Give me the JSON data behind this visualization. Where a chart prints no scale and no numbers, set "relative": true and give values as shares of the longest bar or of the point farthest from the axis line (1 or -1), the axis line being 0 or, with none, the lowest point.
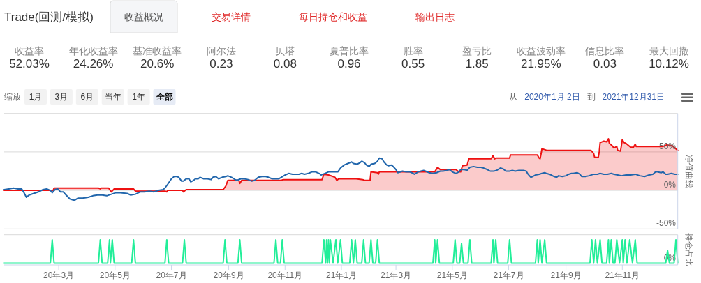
{
  "chart_data": [
    {
      "type": "other",
      "title": "Trade(回测/模拟)",
      "annotations": [
        "收益概况",
        "交易详情",
        "每日持仓和收益",
        "输出日志"
      ],
      "categories": [
        "收益率",
        "年化收益率",
        "基准收益率",
        "阿尔法",
        "贝塔",
        "夏普比率",
        "胜率",
        "盈亏比",
        "收益波动率",
        "信息比率",
        "最大回撤"
      ],
      "value_labels": [
        "52.03%",
        "24.26%",
        "20.6%",
        "0.23",
        "0.08",
        "0.96",
        "0.55",
        "1.85",
        "21.95%",
        "0.03",
        "10.12%"
      ]
    },
    {
      "type": "line",
      "annotations": [
        "缩放",
        "1月",
        "3月",
        "6月",
        "当年",
        "1年",
        "全部",
        "从",
        "2020年1月 2日",
        "到",
        "2021年12月31日"
      ],
      "xlim": [
        "2020-01-02",
        "2021-12-31"
      ],
      "ylim": [
        -50,
        100
      ],
      "yticks": [
        {
          "value": -50,
          "label": "-50%"
        },
        {
          "value": 0,
          "label": "0%"
        },
        {
          "value": 50,
          "label": "50%"
        },
        {
          "value": 100,
          "label": null
        }
      ],
      "ylabel": "净值曲线",
      "grid": "y",
      "tick_labels": "y",
      "series": [
        {
          "type": "area",
          "color": "#ee1111",
          "x": [
            "2020-01-02",
            "2020-02-24",
            "2020-02-25",
            "2020-04-13",
            "2020-04-15",
            "2020-04-16",
            "2020-04-24",
            "2020-04-27",
            "2020-04-30",
            "2020-05-21",
            "2020-05-23",
            "2020-06-24",
            "2020-06-26",
            "2020-06-27",
            "2020-07-13",
            "2020-07-14",
            "2020-07-17",
            "2020-08-26",
            "2020-08-29",
            "2020-08-31",
            "2020-09-12",
            "2020-09-13",
            "2020-09-15",
            "2020-10-28",
            "2020-10-30",
            "2020-12-11",
            "2020-12-13",
            "2020-12-18",
            "2020-12-23",
            "2020-12-25",
            "2020-12-27",
            "2020-12-29",
            "2021-01-17",
            "2021-01-24",
            "2021-01-26",
            "2021-02-01",
            "2021-02-02",
            "2021-02-09",
            "2021-02-10",
            "2021-02-11",
            "2021-04-12",
            "2021-04-15",
            "2021-04-18",
            "2021-05-05",
            "2021-05-08",
            "2021-05-10",
            "2021-05-12",
            "2021-05-17",
            "2021-05-19",
            "2021-06-12",
            "2021-06-14",
            "2021-06-16",
            "2021-06-17",
            "2021-07-02",
            "2021-07-03",
            "2021-08-01",
            "2021-08-03",
            "2021-08-04",
            "2021-08-05",
            "2021-08-06",
            "2021-08-09",
            "2021-08-11",
            "2021-09-28",
            "2021-10-01",
            "2021-10-02",
            "2021-10-06",
            "2021-10-07",
            "2021-10-08",
            "2021-10-12",
            "2021-10-15",
            "2021-10-17",
            "2021-10-18",
            "2021-10-21",
            "2021-10-23",
            "2021-10-26",
            "2021-10-27",
            "2021-10-30",
            "2021-10-31",
            "2021-11-01",
            "2021-11-03",
            "2021-11-05",
            "2021-11-08",
            "2021-11-10",
            "2021-11-13",
            "2021-11-15",
            "2021-11-16",
            "2021-12-15",
            "2021-12-19",
            "2021-12-25",
            "2021-12-28",
            "2021-12-31"
          ],
          "values": [
            0,
            0,
            3,
            3,
            2,
            3,
            3,
            -2,
            2,
            2,
            -1,
            -1,
            -2,
            0,
            0,
            -2,
            1,
            1,
            6,
            13,
            13,
            9,
            13,
            13,
            14,
            14,
            21,
            20,
            18,
            17,
            13,
            15,
            15,
            14,
            13,
            13,
            24,
            23,
            21,
            24,
            24,
            30,
            27,
            27,
            24,
            24,
            32,
            33,
            41,
            41,
            45,
            41,
            42,
            42,
            46,
            46,
            42,
            41,
            47,
            54,
            53,
            52,
            52,
            48,
            43,
            43,
            50,
            62,
            64,
            63,
            67,
            61,
            58,
            55,
            57,
            52,
            51,
            58,
            66,
            62,
            61,
            58,
            56,
            56,
            60,
            57,
            57,
            59,
            58,
            55,
            52
          ]
        },
        {
          "type": "line",
          "color": "#2166ac",
          "x": [
            "2020-01-02",
            "2020-01-07",
            "2020-01-12",
            "2020-01-17",
            "2020-01-21",
            "2020-01-23",
            "2020-01-26",
            "2020-01-29",
            "2020-02-03",
            "2020-02-08",
            "2020-02-13",
            "2020-02-17",
            "2020-02-21",
            "2020-02-23",
            "2020-02-26",
            "2020-02-29",
            "2020-03-03",
            "2020-03-06",
            "2020-03-09",
            "2020-03-13",
            "2020-03-18",
            "2020-03-22",
            "2020-03-27",
            "2020-04-02",
            "2020-04-07",
            "2020-04-12",
            "2020-04-17",
            "2020-04-22",
            "2020-04-27",
            "2020-05-02",
            "2020-05-07",
            "2020-05-14",
            "2020-05-18",
            "2020-05-23",
            "2020-05-28",
            "2020-06-02",
            "2020-06-07",
            "2020-06-12",
            "2020-06-17",
            "2020-06-22",
            "2020-06-24",
            "2020-06-27",
            "2020-07-01",
            "2020-07-04",
            "2020-07-07",
            "2020-07-09",
            "2020-07-12",
            "2020-07-14",
            "2020-07-17",
            "2020-07-20",
            "2020-07-22",
            "2020-07-25",
            "2020-07-27",
            "2020-07-30",
            "2020-08-01",
            "2020-08-05",
            "2020-08-09",
            "2020-08-13",
            "2020-08-15",
            "2020-08-18",
            "2020-08-21",
            "2020-08-25",
            "2020-08-29",
            "2020-08-31",
            "2020-09-04",
            "2020-09-08",
            "2020-09-10",
            "2020-09-14",
            "2020-09-18",
            "2020-09-22",
            "2020-09-26",
            "2020-09-29",
            "2020-10-03",
            "2020-10-07",
            "2020-10-11",
            "2020-10-14",
            "2020-10-18",
            "2020-10-22",
            "2020-10-25",
            "2020-10-28",
            "2020-11-01",
            "2020-11-05",
            "2020-11-09",
            "2020-11-12",
            "2020-11-16",
            "2020-11-19",
            "2020-11-22",
            "2020-11-26",
            "2020-11-30",
            "2020-12-04",
            "2020-12-08",
            "2020-12-10",
            "2020-12-14",
            "2020-12-18",
            "2020-12-23",
            "2020-12-28",
            "2020-12-31",
            "2021-01-04",
            "2021-01-08",
            "2021-01-12",
            "2021-01-14",
            "2021-01-18",
            "2021-01-21",
            "2021-01-23",
            "2021-01-26",
            "2021-01-28",
            "2021-01-31",
            "2021-02-02",
            "2021-02-06",
            "2021-02-09",
            "2021-02-11",
            "2021-02-14",
            "2021-02-16",
            "2021-02-19",
            "2021-02-21",
            "2021-02-24",
            "2021-02-26",
            "2021-03-01",
            "2021-03-03",
            "2021-03-06",
            "2021-03-08",
            "2021-03-12",
            "2021-03-16",
            "2021-03-18",
            "2021-03-21",
            "2021-03-25",
            "2021-03-28",
            "2021-03-31",
            "2021-04-02",
            "2021-04-06",
            "2021-04-10",
            "2021-04-14",
            "2021-04-18",
            "2021-04-21",
            "2021-04-25",
            "2021-04-28",
            "2021-05-01",
            "2021-05-05",
            "2021-05-08",
            "2021-05-10",
            "2021-05-14",
            "2021-05-17",
            "2021-05-20",
            "2021-05-24",
            "2021-05-28",
            "2021-06-01",
            "2021-06-04",
            "2021-06-08",
            "2021-06-11",
            "2021-06-15",
            "2021-06-18",
            "2021-06-22",
            "2021-06-25",
            "2021-06-28",
            "2021-07-02",
            "2021-07-05",
            "2021-07-08",
            "2021-07-12",
            "2021-07-17",
            "2021-07-20",
            "2021-07-22",
            "2021-07-25",
            "2021-07-27",
            "2021-07-30",
            "2021-08-03",
            "2021-08-06",
            "2021-08-09",
            "2021-08-11",
            "2021-08-14",
            "2021-08-16",
            "2021-08-19",
            "2021-08-22",
            "2021-08-24",
            "2021-08-28",
            "2021-09-01",
            "2021-09-04",
            "2021-09-07",
            "2021-09-09",
            "2021-09-13",
            "2021-09-16",
            "2021-09-18",
            "2021-09-22",
            "2021-09-26",
            "2021-10-01",
            "2021-10-05",
            "2021-10-08",
            "2021-10-12",
            "2021-10-16",
            "2021-10-20",
            "2021-10-23",
            "2021-10-27",
            "2021-10-31",
            "2021-11-05",
            "2021-11-10",
            "2021-11-15",
            "2021-11-20",
            "2021-11-25",
            "2021-11-30",
            "2021-12-04",
            "2021-12-07",
            "2021-12-09",
            "2021-12-13",
            "2021-12-15",
            "2021-12-18",
            "2021-12-20",
            "2021-12-24",
            "2021-12-28",
            "2021-12-31"
          ],
          "values": [
            1,
            2,
            3,
            2,
            2,
            -2,
            -9,
            -6,
            -4,
            -2,
            1,
            2,
            0,
            -3,
            1,
            2,
            -2,
            -2,
            -6,
            -11,
            -13,
            -10,
            -10,
            -9,
            -7,
            -6,
            -6,
            -7,
            -5,
            -3,
            -3,
            -4,
            -6,
            -5,
            -2,
            -2,
            -1,
            -2,
            0,
            1,
            3,
            8,
            15,
            18,
            18,
            17,
            12,
            12,
            15,
            15,
            11,
            13,
            15,
            15,
            17,
            15,
            15,
            14,
            17,
            18,
            15,
            17,
            18,
            19,
            17,
            14,
            13,
            15,
            15,
            14,
            12,
            13,
            17,
            18,
            18,
            17,
            15,
            15,
            15,
            17,
            20,
            22,
            21,
            21,
            21,
            22,
            21,
            22,
            24,
            24,
            22,
            20,
            22,
            24,
            24,
            24,
            29,
            33,
            35,
            37,
            35,
            34,
            36,
            38,
            36,
            33,
            31,
            34,
            35,
            38,
            42,
            41,
            37,
            33,
            32,
            33,
            31,
            27,
            23,
            24,
            25,
            24,
            24,
            23,
            21,
            24,
            25,
            26,
            25,
            23,
            22,
            23,
            25,
            25,
            26,
            27,
            24,
            22,
            24,
            27,
            27,
            26,
            30,
            31,
            30,
            30,
            29,
            27,
            25,
            25,
            26,
            29,
            28,
            25,
            25,
            26,
            25,
            26,
            26,
            25,
            21,
            17,
            18,
            20,
            21,
            22,
            23,
            22,
            21,
            20,
            18,
            17,
            19,
            18,
            19,
            21,
            22,
            22,
            23,
            21,
            18,
            18,
            19,
            21,
            21,
            22,
            21,
            21,
            22,
            21,
            20,
            19,
            20,
            20,
            21,
            19,
            18,
            20,
            21,
            24,
            24,
            23,
            24,
            21,
            21,
            22,
            21,
            21
          ]
        }
      ]
    },
    {
      "type": "line",
      "relative": true,
      "xlim": [
        "2020-01-02",
        "2021-12-31"
      ],
      "xticks": [
        {
          "value": "2020-03",
          "label": "20年3月"
        },
        {
          "value": "2020-05",
          "label": "20年5月"
        },
        {
          "value": "2020-07",
          "label": "20年7月"
        },
        {
          "value": "2020-09",
          "label": "20年9月"
        },
        {
          "value": "2020-11",
          "label": "20年11月"
        },
        {
          "value": "2021-01",
          "label": "21年1月"
        },
        {
          "value": "2021-03",
          "label": "21年3月"
        },
        {
          "value": "2021-05",
          "label": "21年5月"
        },
        {
          "value": "2021-07",
          "label": "21年7月"
        },
        {
          "value": "2021-09",
          "label": "21年9月"
        },
        {
          "value": "2021-11",
          "label": "21年11月"
        }
      ],
      "ylabel": "持仓占比",
      "tick_labels": "x",
      "ref_lines": [
        {
          "axis": "y",
          "value": 0,
          "label": "0%"
        }
      ],
      "series": [
        {
          "color": "#22ee99",
          "x": [
            "2020-01-02",
            "2020-02-21",
            "2020-02-23",
            "2020-02-25",
            "2020-04-13",
            "2020-04-15",
            "2020-04-17",
            "2020-04-23",
            "2020-04-25",
            "2020-04-26",
            "2020-04-28",
            "2020-04-30",
            "2020-05-19",
            "2020-05-21",
            "2020-05-23",
            "2020-06-24",
            "2020-06-26",
            "2020-06-28",
            "2020-07-13",
            "2020-07-15",
            "2020-07-17",
            "2020-08-26",
            "2020-08-28",
            "2020-08-30",
            "2020-09-11",
            "2020-09-13",
            "2020-09-15",
            "2020-10-20",
            "2020-10-22",
            "2020-10-24",
            "2020-10-27",
            "2020-10-29",
            "2020-10-31",
            "2020-12-11",
            "2020-12-13",
            "2020-12-15",
            "2020-12-16",
            "2020-12-17",
            "2020-12-18",
            "2020-12-19",
            "2020-12-20",
            "2020-12-23",
            "2020-12-26",
            "2020-12-28",
            "2020-12-31",
            "2021-01-02",
            "2021-01-10",
            "2021-01-12",
            "2021-01-14",
            "2021-01-16",
            "2021-01-18",
            "2021-01-23",
            "2021-01-25",
            "2021-01-27",
            "2021-01-31",
            "2021-02-02",
            "2021-02-04",
            "2021-02-07",
            "2021-02-09",
            "2021-02-11",
            "2021-04-10",
            "2021-04-12",
            "2021-04-13",
            "2021-04-15",
            "2021-04-17",
            "2021-05-02",
            "2021-05-04",
            "2021-05-06",
            "2021-05-09",
            "2021-05-11",
            "2021-05-13",
            "2021-05-18",
            "2021-05-20",
            "2021-05-22",
            "2021-06-12",
            "2021-06-14",
            "2021-06-15",
            "2021-06-17",
            "2021-06-19",
            "2021-06-30",
            "2021-07-02",
            "2021-07-04",
            "2021-07-30",
            "2021-08-01",
            "2021-08-02",
            "2021-08-04",
            "2021-08-06",
            "2021-08-09",
            "2021-08-11",
            "2021-09-27",
            "2021-09-29",
            "2021-10-01",
            "2021-10-03",
            "2021-10-05",
            "2021-10-08",
            "2021-10-10",
            "2021-10-15",
            "2021-10-17",
            "2021-10-18",
            "2021-10-20",
            "2021-10-22",
            "2021-10-24",
            "2021-10-26",
            "2021-10-29",
            "2021-11-01",
            "2021-11-02",
            "2021-11-04",
            "2021-11-06",
            "2021-11-09",
            "2021-11-12",
            "2021-11-15",
            "2021-11-17",
            "2021-12-18",
            "2021-12-20",
            "2021-12-22",
            "2021-12-27",
            "2021-12-29",
            "2021-12-31"
          ],
          "values": [
            0,
            0,
            1,
            0,
            0,
            1,
            0,
            0,
            1,
            0,
            1,
            0,
            0,
            1,
            0,
            0,
            1,
            0,
            0,
            1,
            0,
            0,
            1,
            0,
            0,
            1,
            0,
            0,
            1,
            0,
            0,
            1,
            0,
            0,
            1,
            0,
            1,
            0,
            1,
            0,
            1,
            0,
            1,
            0,
            1,
            0,
            0,
            1,
            0,
            1,
            0,
            0,
            1,
            0,
            0,
            1,
            0,
            0,
            1,
            0,
            0,
            1,
            0,
            1,
            0,
            0,
            1,
            0,
            0,
            0.85,
            0,
            0,
            1,
            0,
            0,
            1,
            0,
            1,
            0,
            0,
            1,
            0,
            0,
            1,
            0,
            1,
            0,
            1,
            0,
            0,
            1,
            0,
            1,
            0,
            1,
            0,
            0,
            1,
            0,
            1,
            0,
            0,
            1,
            0,
            1,
            0,
            1,
            0,
            1,
            0,
            1,
            0,
            0,
            0.55,
            0,
            0,
            1,
            0
          ]
        }
      ]
    }
  ]
}
